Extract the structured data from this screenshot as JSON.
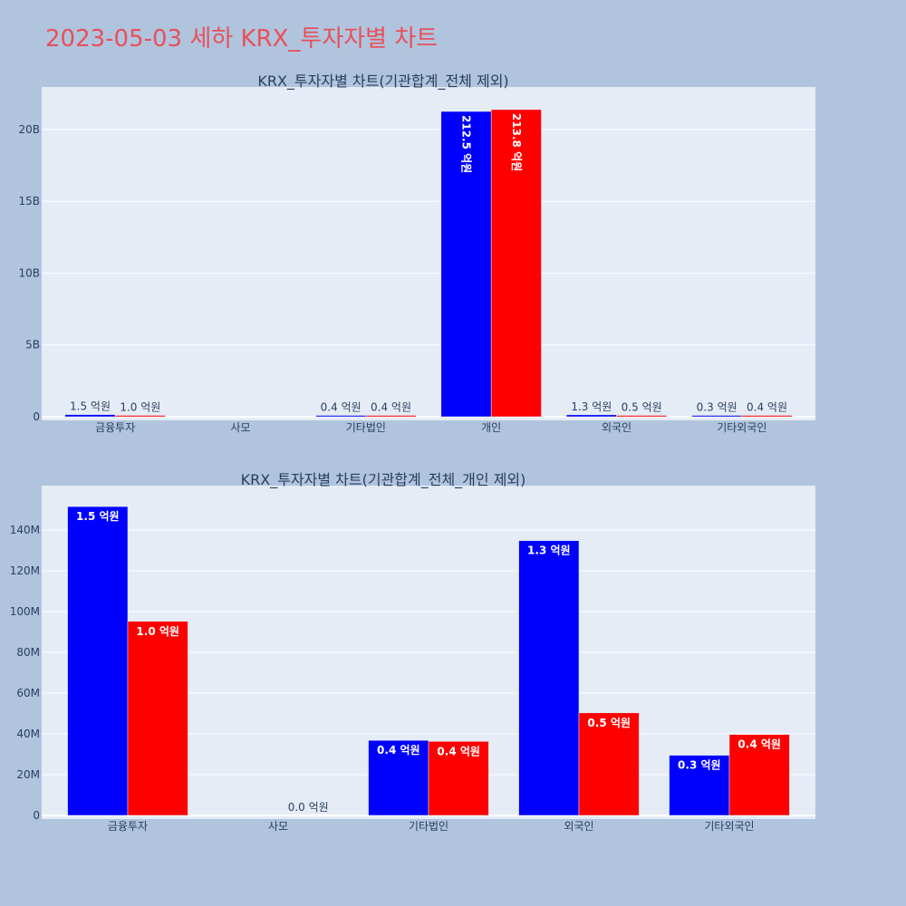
{
  "page": {
    "title": "2023-05-03 세하 KRX_투자자별 차트",
    "title_color": "#e8505b",
    "background": "#b0c4de",
    "plot_background": "#e5ecf6"
  },
  "chart_data": [
    {
      "type": "bar",
      "title": "KRX_투자자별 차트(기관합계_전체 제외)",
      "categories": [
        "금융투자",
        "사모",
        "기타법인",
        "개인",
        "외국인",
        "기타외국인"
      ],
      "series": [
        {
          "color": "#0000ff",
          "values": [
            151000000,
            0,
            37000000,
            21250000000,
            135000000,
            29000000
          ],
          "labels": [
            "1.5 억원",
            "",
            "0.4 억원",
            "212.5 억원",
            "1.3 억원",
            "0.3 억원"
          ]
        },
        {
          "color": "#ff0000",
          "values": [
            95000000,
            0,
            36500000,
            21380000000,
            50000000,
            40000000
          ],
          "labels": [
            "1.0 억원",
            "",
            "0.4 억원",
            "213.8 억원",
            "0.5 억원",
            "0.4 억원"
          ]
        }
      ],
      "ylim": [
        0,
        22700000000
      ],
      "yticks": [
        {
          "value": 0,
          "label": "0"
        },
        {
          "value": 5000000000,
          "label": "5B"
        },
        {
          "value": 10000000000,
          "label": "10B"
        },
        {
          "value": 15000000000,
          "label": "15B"
        },
        {
          "value": 20000000000,
          "label": "20B"
        }
      ],
      "grid": true
    },
    {
      "type": "bar",
      "title": "KRX_투자자별 차트(기관합계_전체_개인 제외)",
      "categories": [
        "금융투자",
        "사모",
        "기타법인",
        "외국인",
        "기타외국인"
      ],
      "series": [
        {
          "color": "#0000ff",
          "values": [
            151500000,
            0,
            36800000,
            134800000,
            29500000
          ],
          "labels": [
            "1.5 억원",
            "",
            "0.4 억원",
            "1.3 억원",
            "0.3 억원"
          ]
        },
        {
          "color": "#ff0000",
          "values": [
            95200000,
            0,
            36300000,
            50300000,
            39700000
          ],
          "labels": [
            "1.0 억원",
            "0.0 억원",
            "0.4 억원",
            "0.5 억원",
            "0.4 억원"
          ]
        }
      ],
      "ylim": [
        0,
        160000000
      ],
      "yticks": [
        {
          "value": 0,
          "label": "0"
        },
        {
          "value": 20000000,
          "label": "20M"
        },
        {
          "value": 40000000,
          "label": "40M"
        },
        {
          "value": 60000000,
          "label": "60M"
        },
        {
          "value": 80000000,
          "label": "80M"
        },
        {
          "value": 100000000,
          "label": "100M"
        },
        {
          "value": 120000000,
          "label": "120M"
        },
        {
          "value": 140000000,
          "label": "140M"
        }
      ],
      "grid": true
    }
  ]
}
